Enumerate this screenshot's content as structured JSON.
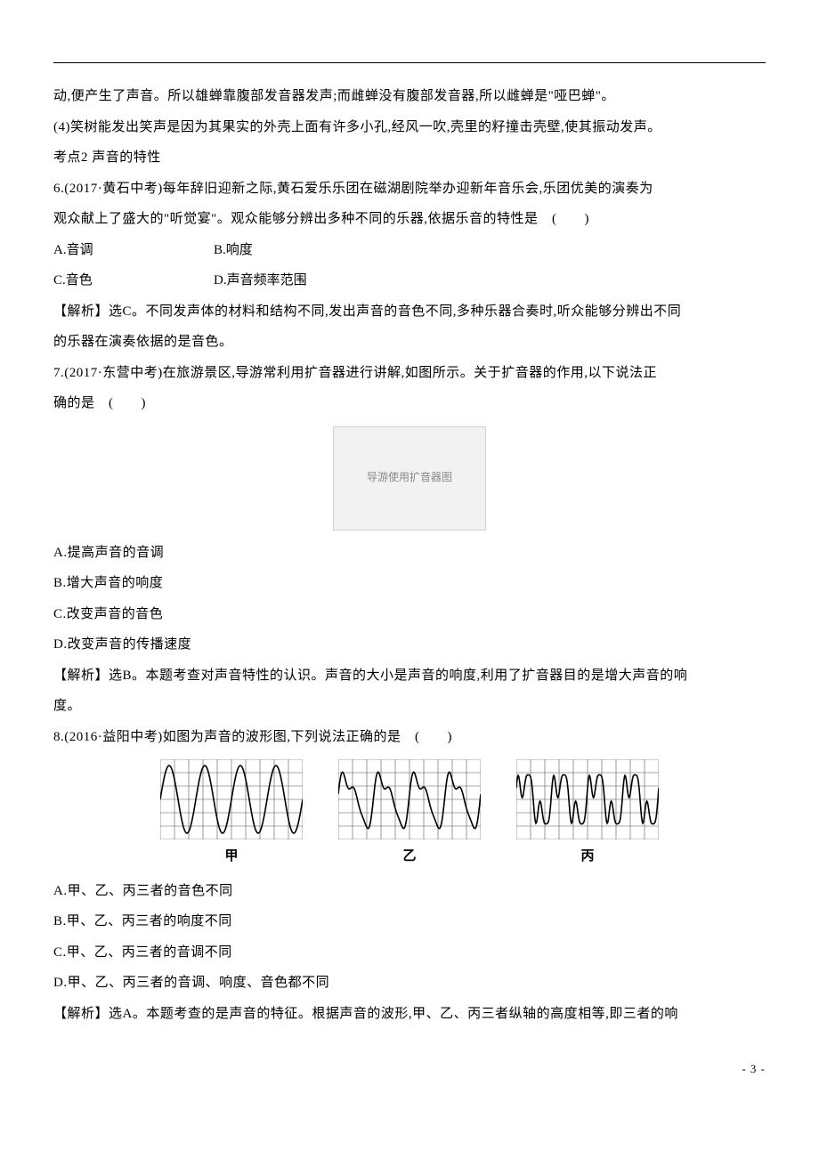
{
  "intro": {
    "line1": "动,便产生了声音。所以雄蝉靠腹部发音器发声;而雌蝉没有腹部发音器,所以雌蝉是\"哑巴蝉\"。",
    "line2": "(4)笑树能发出笑声是因为其果实的外壳上面有许多小孔,经风一吹,壳里的籽撞击壳壁,使其振动发声。",
    "topic": "考点2 声音的特性"
  },
  "q6": {
    "stem1": "6.(2017·黄石中考)每年辞旧迎新之际,黄石爱乐乐团在磁湖剧院举办迎新年音乐会,乐团优美的演奏为",
    "stem2": "观众献上了盛大的\"听觉宴\"。观众能够分辨出多种不同的乐器,依据乐音的特性是　(　　)",
    "optA": "A.音调",
    "optB": "B.响度",
    "optC": "C.音色",
    "optD": "D.声音频率范围",
    "ans1": "【解析】选C。不同发声体的材料和结构不同,发出声音的音色不同,多种乐器合奏时,听众能够分辨出不同",
    "ans2": "的乐器在演奏依据的是音色。"
  },
  "q7": {
    "stem1": "7.(2017·东营中考)在旅游景区,导游常利用扩音器进行讲解,如图所示。关于扩音器的作用,以下说法正",
    "stem2": "确的是　(　　)",
    "img_alt": "导游使用扩音器图",
    "optA": "A.提高声音的音调",
    "optB": "B.增大声音的响度",
    "optC": "C.改变声音的音色",
    "optD": "D.改变声音的传播速度",
    "ans1": "【解析】选B。本题考查对声音特性的认识。声音的大小是声音的响度,利用了扩音器目的是增大声音的响",
    "ans2": "度。"
  },
  "q8": {
    "stem": "8.(2016·益阳中考)如图为声音的波形图,下列说法正确的是　(　　)",
    "labels": {
      "a": "甲",
      "b": "乙",
      "c": "丙"
    },
    "optA": "A.甲、乙、丙三者的音色不同",
    "optB": "B.甲、乙、丙三者的响度不同",
    "optC": "C.甲、乙、丙三者的音调不同",
    "optD": "D.甲、乙、丙三者的音调、响度、音色都不同",
    "ans": "【解析】选A。本题考查的是声音的特征。根据声音的波形,甲、乙、丙三者纵轴的高度相等,即三者的响",
    "grid": {
      "w": 160,
      "h": 90,
      "cols": 10,
      "rows": 6,
      "grid_color": "#555555",
      "grid_stroke": 0.6,
      "wave_color": "#000000",
      "wave_stroke": 1.6
    },
    "wave_jia": {
      "cycles": 4,
      "amp": 38,
      "type": "sine"
    },
    "wave_yi": {
      "cycles": 4,
      "amp": 38,
      "type": "complex1"
    },
    "wave_bing": {
      "cycles": 4,
      "amp": 38,
      "type": "complex2"
    }
  },
  "pagenum": "- 3 -"
}
